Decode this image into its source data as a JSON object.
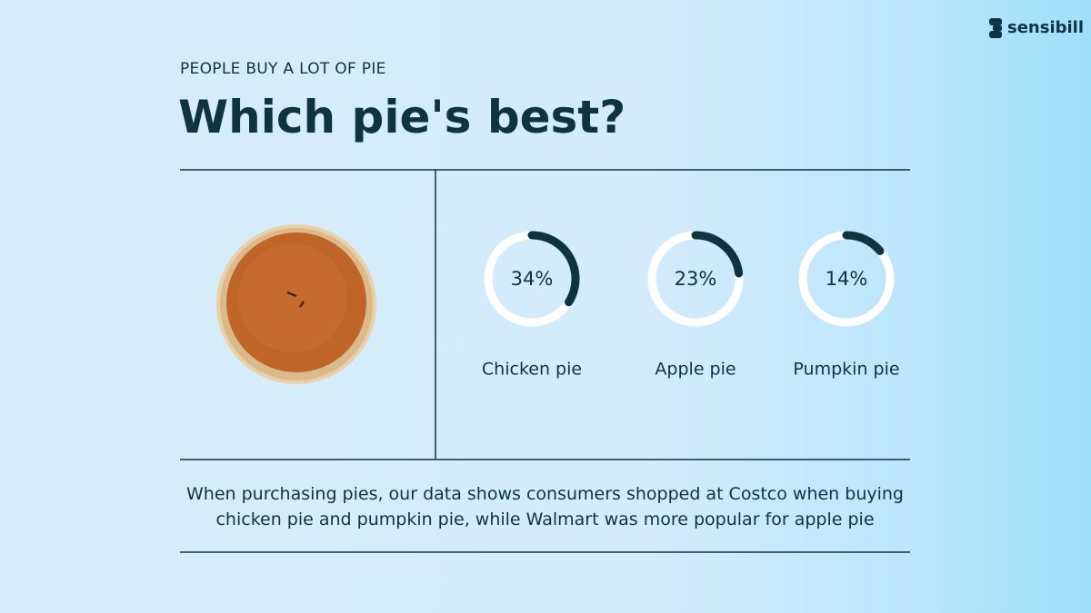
{
  "logo": "sensibill",
  "chart_data": {
    "type": "donut",
    "subtitle": "PEOPLE BUY A LOT OF PIE",
    "title": "Which pie's best?",
    "categories": [
      "Chicken pie",
      "Apple pie",
      "Pumpkin pie"
    ],
    "values": [
      34,
      23,
      14
    ],
    "value_labels": [
      "34%",
      "23%",
      "14%"
    ],
    "ylim": [
      0,
      100
    ],
    "color": "#0f3340",
    "track_color": "#ffffff",
    "annotation": "When purchasing pies, our data shows consumers shopped at Costco when buying chicken pie and pumpkin pie, while Walmart was more popular for apple pie"
  }
}
